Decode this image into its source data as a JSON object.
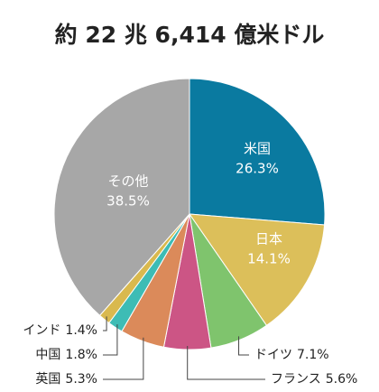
{
  "chart_data": {
    "type": "pie",
    "title": "約 22 兆 6,414 億米ドル",
    "categories": [
      "米国",
      "日本",
      "ドイツ",
      "フランス",
      "英国",
      "中国",
      "インド",
      "その他"
    ],
    "values": [
      26.3,
      14.1,
      7.1,
      5.6,
      5.3,
      1.8,
      1.4,
      38.5
    ],
    "value_labels": [
      "26.3%",
      "14.1%",
      "7.1%",
      "5.6%",
      "5.3%",
      "1.8%",
      "1.4%",
      "38.5%"
    ],
    "colors": [
      "#0a7aa0",
      "#dcbf5a",
      "#7fc46d",
      "#cc5585",
      "#db8a5a",
      "#3dbcb5",
      "#d9b94e",
      "#a7a7a7"
    ]
  }
}
